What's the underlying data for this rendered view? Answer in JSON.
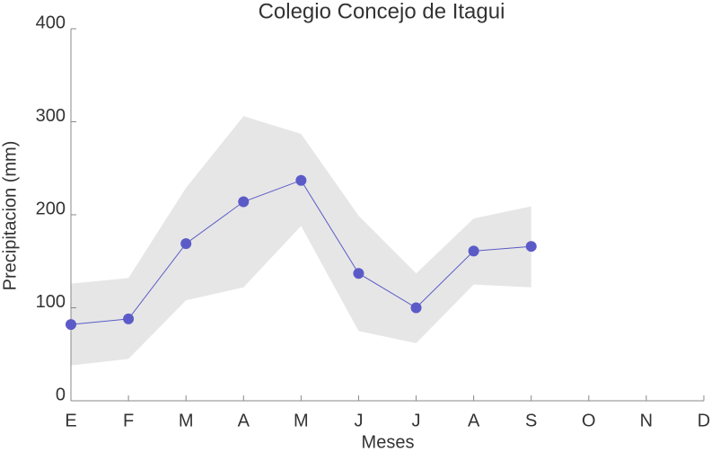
{
  "chart_data": {
    "type": "line",
    "title": "Colegio Concejo de Itagui",
    "x_label": "Meses",
    "y_label": "Precipitacion (mm)",
    "categories": [
      "E",
      "F",
      "M",
      "A",
      "M",
      "J",
      "J",
      "A",
      "S",
      "O",
      "N",
      "D"
    ],
    "series": [
      {
        "color": "#5b5bc8",
        "values": [
          82,
          88,
          169,
          214,
          237,
          137,
          100,
          161,
          166,
          null,
          null,
          null
        ]
      }
    ],
    "band": {
      "color": "#e6e6e6",
      "lower": [
        38,
        45,
        108,
        122,
        188,
        75,
        62,
        125,
        122,
        null,
        null,
        null
      ],
      "upper": [
        126,
        132,
        229,
        306,
        287,
        199,
        137,
        196,
        209,
        null,
        null,
        null
      ]
    },
    "ylim": [
      0,
      400
    ],
    "yticks": [
      0,
      100,
      200,
      300,
      400
    ],
    "grid": false
  }
}
